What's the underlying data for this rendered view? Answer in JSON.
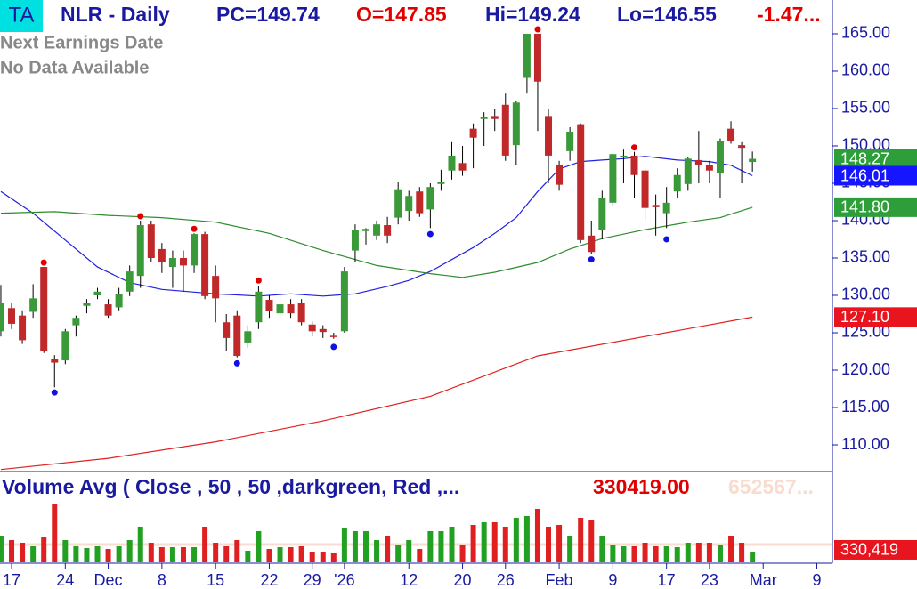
{
  "chart_data": {
    "type": "candlestick",
    "badge": "TA",
    "title": "NLR - Daily",
    "header": [
      "PC=149.74",
      "O=147.85",
      "Hi=149.24",
      "Lo=146.55",
      "-1.47..."
    ],
    "notes": [
      "Next Earnings Date",
      "No Data Available"
    ],
    "xlim": [
      -0.08,
      77.45
    ],
    "xticks": [
      {
        "value": 1,
        "label": "17"
      },
      {
        "value": 6,
        "label": "24"
      },
      {
        "value": 10,
        "label": "Dec"
      },
      {
        "value": 15,
        "label": "8"
      },
      {
        "value": 20,
        "label": "15"
      },
      {
        "value": 25,
        "label": "22"
      },
      {
        "value": 29,
        "label": "29"
      },
      {
        "value": 32,
        "label": "'26"
      },
      {
        "value": 38,
        "label": "12"
      },
      {
        "value": 43,
        "label": "20"
      },
      {
        "value": 47,
        "label": "26"
      },
      {
        "value": 52,
        "label": "Feb"
      },
      {
        "value": 57,
        "label": "9"
      },
      {
        "value": 62,
        "label": "17"
      },
      {
        "value": 66,
        "label": "23"
      },
      {
        "value": 71,
        "label": "Mar"
      },
      {
        "value": 76,
        "label": "9"
      }
    ],
    "ylim": [
      106.43,
      169.52
    ],
    "yticks": [
      {
        "value": 110,
        "label": "110.00"
      },
      {
        "value": 115,
        "label": "115.00"
      },
      {
        "value": 120,
        "label": "120.00"
      },
      {
        "value": 125,
        "label": "125.00"
      },
      {
        "value": 130,
        "label": "130.00"
      },
      {
        "value": 135,
        "label": "135.00"
      },
      {
        "value": 140,
        "label": "140.00"
      },
      {
        "value": 145,
        "label": "145.00"
      },
      {
        "value": 150,
        "label": "150.00"
      },
      {
        "value": 155,
        "label": "155.00"
      },
      {
        "value": 160,
        "label": "160.00"
      },
      {
        "value": 165,
        "label": "165.00"
      }
    ],
    "up_color": "#3a9a3a",
    "down_color": "#c0282a",
    "open": [
      125.2,
      128.3,
      127.3,
      127.8,
      133.8,
      121.5,
      121.3,
      126.0,
      128.6,
      130.0,
      128.8,
      128.4,
      130.5,
      132.6,
      139.5,
      136.2,
      133.8,
      135.0,
      134.0,
      138.2,
      132.6,
      126.4,
      127.3,
      123.7,
      126.4,
      129.4,
      127.6,
      128.8,
      129.0,
      126.1,
      125.5,
      124.6,
      125.2,
      136.0,
      138.6,
      138.0,
      139.4,
      140.4,
      141.3,
      143.9,
      141.5,
      144.9,
      146.7,
      147.7,
      152.3,
      153.6,
      154.0,
      155.5,
      150.1,
      159.1,
      165.0,
      154.0,
      147.5,
      149.3,
      152.9,
      138.0,
      138.8,
      142.4,
      148.5,
      148.7,
      146.7,
      142.1,
      141.0,
      143.9,
      144.9,
      148.1,
      147.4,
      146.3,
      152.3,
      150.1,
      147.85
    ],
    "high": [
      131.4,
      129.0,
      128.0,
      131.5,
      133.8,
      122.0,
      125.5,
      127.3,
      129.5,
      131.0,
      129.5,
      131.0,
      134.0,
      140.0,
      140.0,
      137.0,
      136.0,
      136.0,
      138.3,
      138.5,
      134.0,
      127.5,
      128.0,
      126.0,
      131.2,
      130.0,
      130.5,
      129.5,
      129.5,
      126.5,
      126.0,
      125.0,
      133.8,
      139.5,
      139.0,
      140.0,
      140.5,
      145.2,
      144.0,
      144.5,
      145.0,
      146.8,
      150.5,
      150.0,
      153.0,
      154.5,
      155.0,
      157.0,
      156.0,
      165.0,
      165.0,
      155.0,
      148.0,
      152.5,
      153.0,
      140.0,
      144.0,
      149.0,
      149.5,
      149.2,
      147.0,
      143.5,
      144.5,
      147.0,
      148.5,
      152.0,
      148.0,
      151.0,
      153.3,
      150.5,
      149.24
    ],
    "low": [
      124.5,
      125.5,
      123.5,
      127.0,
      122.3,
      117.7,
      120.8,
      124.5,
      127.6,
      129.5,
      127.0,
      128.0,
      129.9,
      131.0,
      134.5,
      133.0,
      131.0,
      130.5,
      133.0,
      129.5,
      126.4,
      122.5,
      121.7,
      123.0,
      125.5,
      127.0,
      127.0,
      127.0,
      126.0,
      124.5,
      124.3,
      124.2,
      125.0,
      134.5,
      136.8,
      137.4,
      137.0,
      139.5,
      140.0,
      140.5,
      139.0,
      144.0,
      145.5,
      146.0,
      147.0,
      150.0,
      152.0,
      148.0,
      147.5,
      157.0,
      152.0,
      145.0,
      144.0,
      148.0,
      137.0,
      135.5,
      137.5,
      142.0,
      145.0,
      143.0,
      140.0,
      138.0,
      139.0,
      143.0,
      144.0,
      145.0,
      145.0,
      143.0,
      150.3,
      145.0,
      146.55
    ],
    "close": [
      129.0,
      126.2,
      124.0,
      129.6,
      122.5,
      121.0,
      125.2,
      127.0,
      129.0,
      130.5,
      127.3,
      130.2,
      133.2,
      139.4,
      135.0,
      134.4,
      135.0,
      134.0,
      138.2,
      129.9,
      129.6,
      124.3,
      121.9,
      125.2,
      130.5,
      127.9,
      128.8,
      127.6,
      126.4,
      125.2,
      125.1,
      124.5,
      133.2,
      138.8,
      138.9,
      139.5,
      138.0,
      144.2,
      143.3,
      141.0,
      144.5,
      145.2,
      148.7,
      146.7,
      151.1,
      153.9,
      153.6,
      148.7,
      155.8,
      165.0,
      158.6,
      148.7,
      144.8,
      151.9,
      137.4,
      135.8,
      143.1,
      148.9,
      148.7,
      146.1,
      141.7,
      141.8,
      142.4,
      146.1,
      148.3,
      147.5,
      146.7,
      150.7,
      150.7,
      149.74,
      148.27
    ],
    "close_label": "148.27",
    "close_label_color": "#2e9e3a",
    "overlays": [
      {
        "color": "#2020e0",
        "x": [
          0,
          3,
          6,
          9,
          12,
          15,
          20,
          24,
          27,
          30,
          33,
          36,
          38,
          40,
          42,
          44,
          46,
          48,
          50,
          52,
          54,
          56,
          58,
          60,
          63,
          66,
          68,
          70
        ],
        "values": [
          143.9,
          141.0,
          137.4,
          133.8,
          131.7,
          130.8,
          130.2,
          129.9,
          130.2,
          129.9,
          130.2,
          131.2,
          132.0,
          133.2,
          134.8,
          136.4,
          138.3,
          140.4,
          143.9,
          146.9,
          147.9,
          148.1,
          148.3,
          148.6,
          148.1,
          147.9,
          147.4,
          146.01
        ],
        "label": "146.01",
        "label_color": "#1515ff"
      },
      {
        "color": "#2e8b2e",
        "x": [
          0,
          5,
          10,
          15,
          20,
          25,
          30,
          35,
          40,
          43,
          46,
          50,
          53,
          56,
          60,
          64,
          67,
          70
        ],
        "values": [
          141.0,
          141.2,
          140.7,
          140.4,
          139.8,
          138.3,
          136.0,
          134.0,
          132.9,
          132.4,
          133.1,
          134.4,
          136.2,
          137.6,
          138.8,
          139.8,
          140.4,
          141.8
        ],
        "label": "141.80",
        "label_color": "#2e9e3a"
      },
      {
        "color": "#e02020",
        "x": [
          0,
          10,
          20,
          30,
          40,
          50,
          60,
          70
        ],
        "values": [
          106.7,
          108.2,
          110.4,
          113.2,
          116.5,
          121.9,
          124.5,
          127.1
        ],
        "label": "127.10",
        "label_color": "#e8141e"
      }
    ],
    "high_dots": {
      "color": "#e00000",
      "x": [
        4,
        13,
        18,
        24,
        50,
        59
      ],
      "values": [
        133.8,
        140.0,
        138.3,
        131.4,
        165.0,
        149.2
      ]
    },
    "low_dots": {
      "color": "#1010e0",
      "x": [
        5,
        22,
        31,
        40,
        55,
        62
      ],
      "values": [
        117.6,
        121.5,
        123.7,
        138.8,
        135.4,
        138.1
      ]
    },
    "volume": {
      "type": "bar",
      "title": "Volume Avg ( Close , 50 , 50 ,darkgreen, Red ,...",
      "avg_text": "330419.00",
      "faded_text": "652567...",
      "ylim": [
        0,
        1600000
      ],
      "values": [
        495000,
        412500,
        363000,
        297000,
        462000,
        1089000,
        412500,
        297000,
        264000,
        297000,
        247500,
        297000,
        412500,
        660000,
        363000,
        280500,
        280500,
        280500,
        280500,
        660000,
        363000,
        297000,
        412500,
        214500,
        577500,
        247500,
        280500,
        280500,
        297000,
        198000,
        198000,
        165000,
        627000,
        577500,
        577500,
        412500,
        495000,
        330000,
        412500,
        247500,
        577500,
        577500,
        660000,
        330000,
        693000,
        742500,
        742500,
        660000,
        825000,
        858000,
        990000,
        660000,
        693000,
        495000,
        825000,
        792000,
        495000,
        330000,
        297000,
        297000,
        363000,
        297000,
        297000,
        280500,
        363000,
        363000,
        363000,
        330000,
        495000,
        363000,
        198000
      ],
      "avg_value": 330419,
      "avg_label": "330,419"
    }
  }
}
